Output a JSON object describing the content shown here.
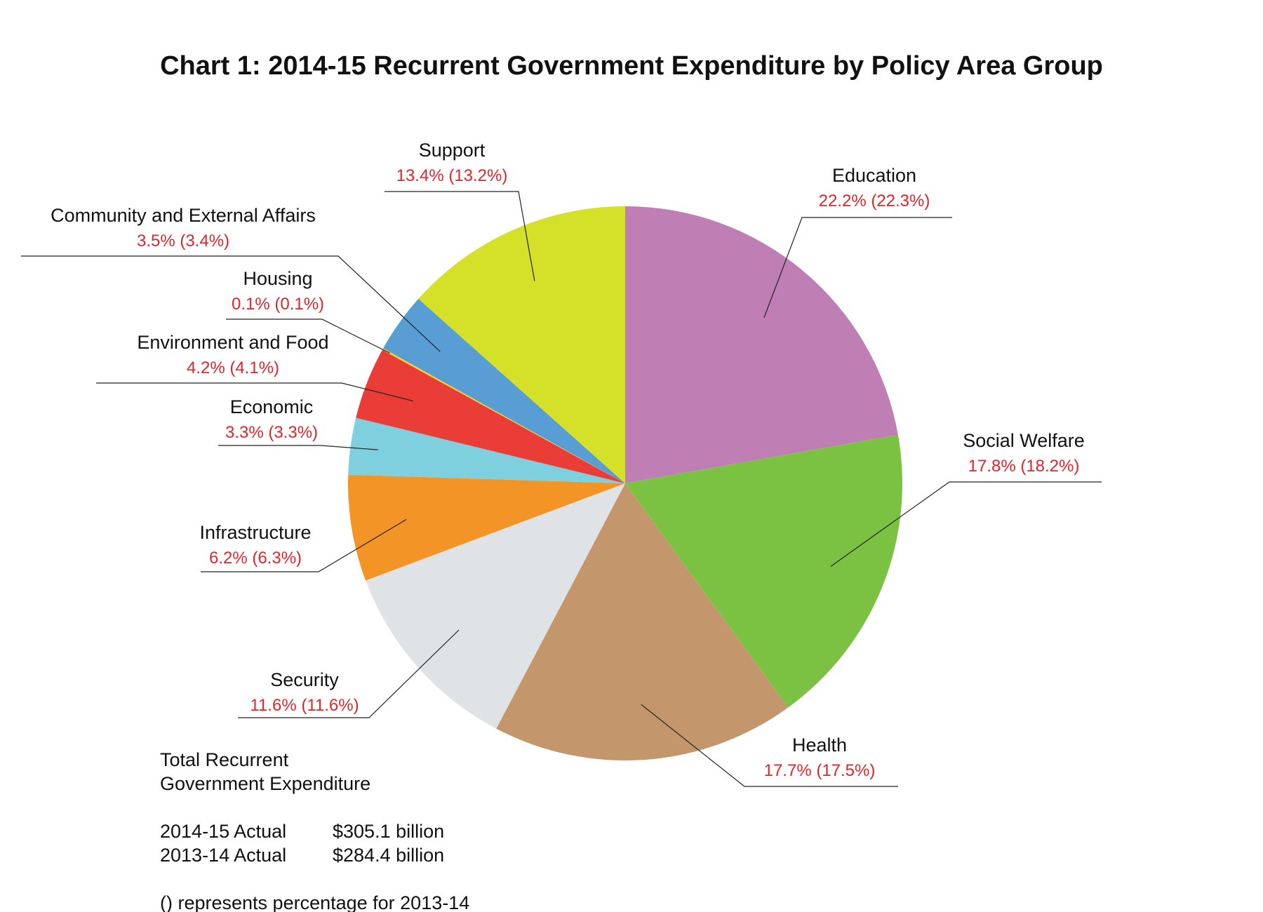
{
  "chart_data": {
    "type": "pie",
    "title": "Chart 1: 2014-15 Recurrent Government Expenditure by Policy Area Group",
    "slices": [
      {
        "name": "Education",
        "value": 22.2,
        "value_prev": 22.3,
        "pct_text": "22.2% (22.3%)",
        "color": "#bf7fb4"
      },
      {
        "name": "Social Welfare",
        "value": 17.8,
        "value_prev": 18.2,
        "pct_text": "17.8% (18.2%)",
        "color": "#7cc242"
      },
      {
        "name": "Health",
        "value": 17.7,
        "value_prev": 17.5,
        "pct_text": "17.7% (17.5%)",
        "color": "#c4966c"
      },
      {
        "name": "Security",
        "value": 11.6,
        "value_prev": 11.6,
        "pct_text": "11.6% (11.6%)",
        "color": "#e0e3e6"
      },
      {
        "name": "Infrastructure",
        "value": 6.2,
        "value_prev": 6.3,
        "pct_text": "6.2% (6.3%)",
        "color": "#f39427"
      },
      {
        "name": "Economic",
        "value": 3.3,
        "value_prev": 3.3,
        "pct_text": "3.3% (3.3%)",
        "color": "#7fd0de"
      },
      {
        "name": "Environment and Food",
        "value": 4.2,
        "value_prev": 4.1,
        "pct_text": "4.2% (4.1%)",
        "color": "#ea3d37"
      },
      {
        "name": "Housing",
        "value": 0.1,
        "value_prev": 0.1,
        "pct_text": "0.1% (0.1%)",
        "color": "#ffd81a"
      },
      {
        "name": "Community and External Affairs",
        "value": 3.5,
        "value_prev": 3.4,
        "pct_text": "3.5% (3.4%)",
        "color": "#589dd4"
      },
      {
        "name": "Support",
        "value": 13.4,
        "value_prev": 13.2,
        "pct_text": "13.4% (13.2%)",
        "color": "#d5e029"
      }
    ],
    "notes": {
      "total_heading_line1": "Total Recurrent",
      "total_heading_line2": "Government Expenditure",
      "rows": [
        {
          "label": "2014-15 Actual",
          "amount": "$305.1 billion"
        },
        {
          "label": "2013-14 Actual",
          "amount": "$284.4 billion"
        }
      ],
      "footnote": "() represents percentage for 2013-14"
    }
  }
}
